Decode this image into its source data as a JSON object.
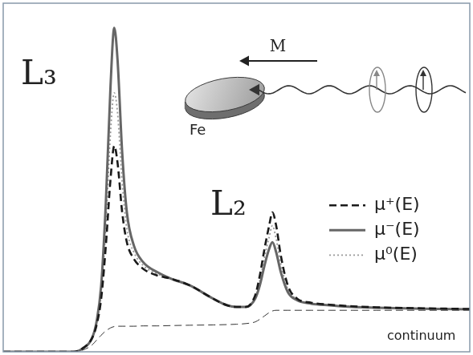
{
  "chart_data": {
    "type": "line",
    "x": [
      0,
      10,
      15,
      17,
      19,
      20,
      21,
      22,
      23,
      23.8,
      24.5,
      25.5,
      26.5,
      28,
      30,
      33,
      36,
      40,
      45,
      48,
      50,
      52,
      54,
      55,
      56,
      57,
      57.7,
      58.5,
      59.5,
      61,
      63,
      66,
      70,
      75,
      80,
      90,
      100
    ],
    "xlim": [
      0,
      100
    ],
    "ylim": [
      0,
      105
    ],
    "tick_labels": false,
    "grid": false,
    "legend": "right",
    "series": [
      {
        "name": "μ⁺(E)",
        "color": "#1a1a1a",
        "line_style": "dashed",
        "values": [
          0,
          0,
          0,
          1,
          4,
          8,
          16,
          32,
          52,
          62,
          57,
          42,
          33,
          28,
          25,
          23,
          22,
          20,
          16,
          14,
          13.5,
          13.5,
          17,
          23,
          31,
          38,
          42,
          38,
          29,
          20,
          16,
          14.8,
          14.2,
          13.7,
          13.4,
          13.1,
          12.9
        ]
      },
      {
        "name": "μ⁻(E)",
        "color": "#666666",
        "line_style": "solid",
        "values": [
          0,
          0,
          0,
          1,
          4,
          9,
          20,
          45,
          80,
          97.6,
          88,
          60,
          42,
          32,
          27,
          24,
          22,
          20,
          16,
          14,
          13.5,
          13.5,
          16,
          20,
          26,
          31,
          33,
          30,
          24,
          18,
          15.5,
          14.5,
          14,
          13.5,
          13.3,
          13,
          12.8
        ]
      },
      {
        "name": "μ⁰(E)",
        "color": "#999999",
        "line_style": "dotted",
        "values": [
          0,
          0,
          0,
          1,
          4,
          8.5,
          18,
          38,
          66,
          78,
          72,
          51,
          37,
          30,
          26,
          23.5,
          22,
          20,
          16,
          14,
          13.5,
          13.5,
          16.5,
          21.5,
          28.5,
          34.5,
          38,
          34,
          26.5,
          19,
          15.8,
          14.6,
          14.1,
          13.6,
          13.3,
          13,
          12.8
        ]
      }
    ],
    "continuum": {
      "label": "continuum",
      "color": "#333333",
      "line_style": "dashed",
      "values": [
        0,
        0,
        0,
        0.5,
        2,
        3.5,
        5,
        6.3,
        7.2,
        7.6,
        7.7,
        7.7,
        7.7,
        7.7,
        7.8,
        7.8,
        7.9,
        8,
        8.1,
        8.2,
        8.3,
        8.5,
        9,
        9.8,
        10.8,
        11.8,
        12.3,
        12.5,
        12.5,
        12.5,
        12.5,
        12.5,
        12.5,
        12.5,
        12.5,
        12.5,
        12.5
      ]
    },
    "edge_labels": [
      "L₃",
      "L₂"
    ],
    "inset": {
      "magnetization": "M",
      "sample": "Fe"
    }
  }
}
